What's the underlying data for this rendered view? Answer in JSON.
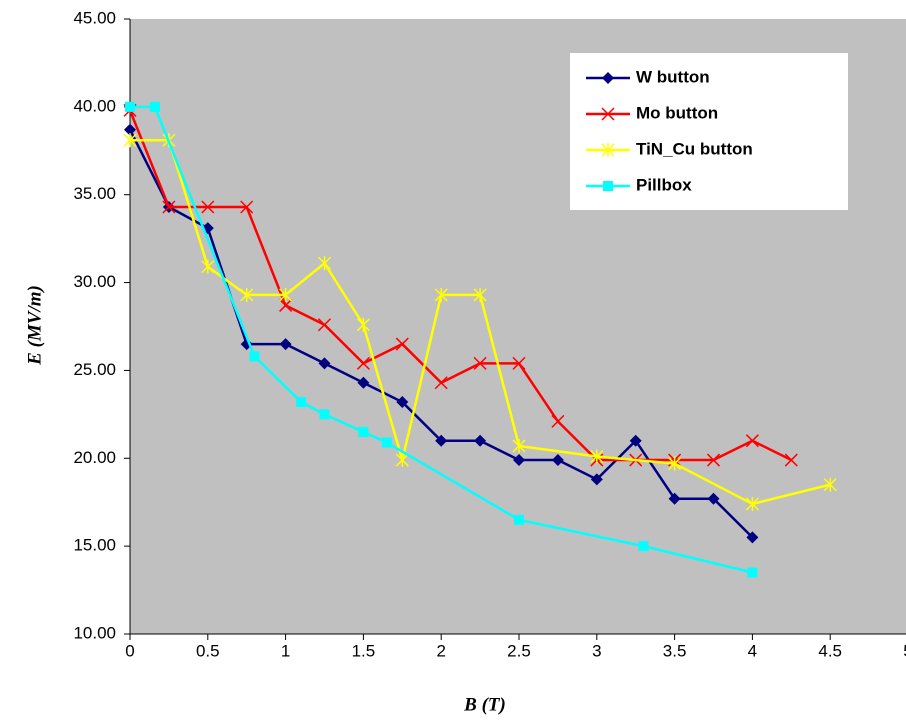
{
  "chart_data": {
    "type": "line",
    "xlabel": "B (T)",
    "ylabel": "E (MV/m)",
    "xlim": [
      0,
      5
    ],
    "ylim": [
      10,
      45
    ],
    "xticks": [
      0,
      0.5,
      1,
      1.5,
      2,
      2.5,
      3,
      3.5,
      4,
      4.5,
      5
    ],
    "yticks": [
      {
        "value": 10,
        "label": "10.00"
      },
      {
        "value": 15,
        "label": "15.00"
      },
      {
        "value": 20,
        "label": "20.00"
      },
      {
        "value": 25,
        "label": "25.00"
      },
      {
        "value": 30,
        "label": "30.00"
      },
      {
        "value": 35,
        "label": "35.00"
      },
      {
        "value": 40,
        "label": "40.00"
      },
      {
        "value": 45,
        "label": "45.00"
      }
    ],
    "legend": "upper right",
    "series": [
      {
        "name": "W button",
        "color": "#000080",
        "marker": "diamond",
        "x": [
          0,
          0.25,
          0.5,
          0.75,
          1,
          1.25,
          1.5,
          1.75,
          2,
          2.25,
          2.5,
          2.75,
          3,
          3.25,
          3.5,
          3.75,
          4
        ],
        "values": [
          38.7,
          34.3,
          33.1,
          26.5,
          26.5,
          25.4,
          24.3,
          23.2,
          21.0,
          21.0,
          19.9,
          19.9,
          18.8,
          21.0,
          17.7,
          17.7,
          15.5
        ]
      },
      {
        "name": "Mo button",
        "color": "#ff0000",
        "marker": "x",
        "x": [
          0,
          0.25,
          0.5,
          0.75,
          1,
          1.25,
          1.5,
          1.75,
          2,
          2.25,
          2.5,
          2.75,
          3,
          3.25,
          3.5,
          3.75,
          4,
          4.25
        ],
        "values": [
          39.8,
          34.3,
          34.3,
          34.3,
          28.7,
          27.6,
          25.4,
          26.5,
          24.3,
          25.4,
          25.4,
          22.1,
          19.9,
          19.9,
          19.9,
          19.9,
          21.0,
          19.9
        ]
      },
      {
        "name": "TiN_Cu button",
        "color": "#ffff00",
        "marker": "star",
        "x": [
          0,
          0.25,
          0.5,
          0.75,
          1,
          1.25,
          1.5,
          1.75,
          2,
          2.25,
          2.5,
          3,
          3.5,
          4,
          4.5
        ],
        "values": [
          38.1,
          38.1,
          30.9,
          29.3,
          29.3,
          31.1,
          27.6,
          19.9,
          29.3,
          29.3,
          20.7,
          20.1,
          19.7,
          17.4,
          18.5
        ]
      },
      {
        "name": "Pillbox",
        "color": "#00ffff",
        "marker": "square",
        "x": [
          0,
          0.16,
          0.8,
          1.1,
          1.25,
          1.5,
          1.65,
          2.5,
          3.3,
          4
        ],
        "values": [
          40,
          40,
          25.8,
          23.2,
          22.5,
          21.5,
          20.9,
          16.5,
          15.0,
          13.5
        ]
      }
    ]
  }
}
